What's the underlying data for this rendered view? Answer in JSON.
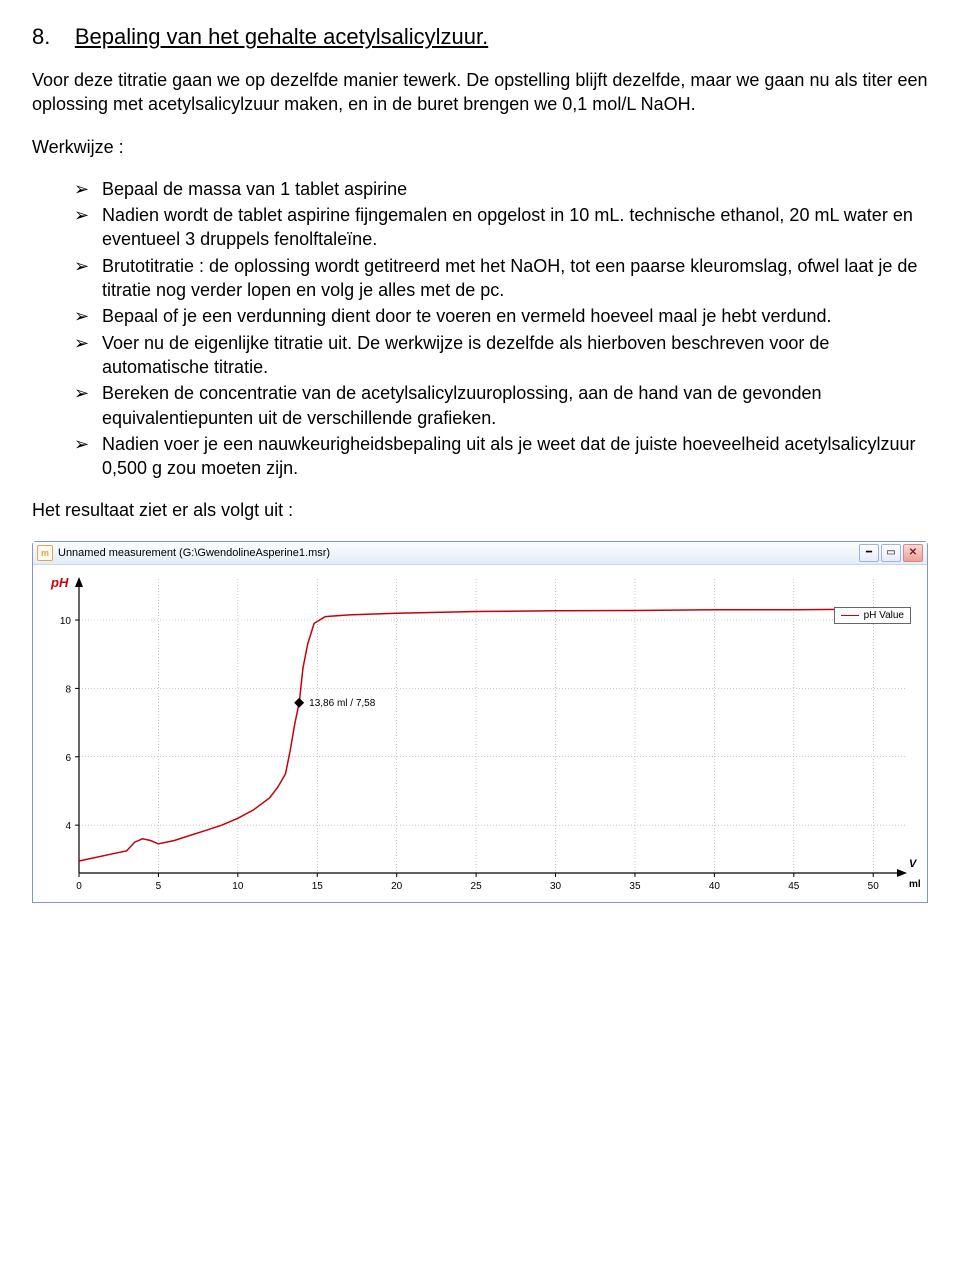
{
  "section": {
    "number": "8.",
    "title": "Bepaling van het gehalte acetylsalicylzuur."
  },
  "para1": "Voor deze titratie gaan we op dezelfde manier tewerk. De opstelling blijft dezelfde, maar we gaan nu als titer een oplossing met acetylsalicylzuur maken, en in de buret brengen we 0,1 mol/L NaOH.",
  "werkwijze_label": "Werkwijze :",
  "bullets": [
    "Bepaal de massa van 1 tablet aspirine",
    "Nadien wordt de tablet aspirine fijngemalen en opgelost in 10 mL. technische ethanol, 20 mL water en eventueel 3 druppels fenolftaleïne.",
    "Brutotitratie : de oplossing wordt getitreerd met het NaOH, tot een paarse kleuromslag, ofwel laat je de titratie nog verder lopen en volg je alles met de pc.",
    "Bepaal of je een verdunning dient door te voeren en vermeld hoeveel maal je hebt verdund.",
    "Voer nu de eigenlijke titratie uit. De werkwijze is dezelfde als hierboven beschreven voor de automatische titratie.",
    "Bereken de concentratie van de acetylsalicylzuuroplossing, aan de hand van de gevonden equivalentiepunten uit de verschillende grafieken.",
    "Nadien voer je een nauwkeurigheidsbepaling uit als je weet dat de juiste hoeveelheid acetylsalicylzuur 0,500 g zou moeten zijn."
  ],
  "result_label": "Het resultaat ziet er als volgt uit :",
  "chart": {
    "window_icon_letter": "m",
    "window_title": "Unnamed measurement (G:\\GwendolineAsperine1.msr)",
    "legend_label": "pH Value",
    "y_axis_label": "pH",
    "y_axis_label_color": "#c8000a",
    "x_axis_label": "V",
    "x_axis_unit": "ml",
    "marker_label": "13,86 ml / 7,58",
    "marker_x": 13.86,
    "marker_y": 7.58,
    "xlim": [
      0,
      52
    ],
    "ylim": [
      2.6,
      11.2
    ],
    "xticks": [
      0,
      5,
      10,
      15,
      20,
      25,
      30,
      35,
      40,
      45,
      50
    ],
    "yticks": [
      4,
      6,
      8,
      10
    ],
    "grid_color": "#969696",
    "axis_color": "#000000",
    "line_color": "#c8000a",
    "line_width": 1.5,
    "background_color": "#ffffff",
    "tick_fontsize": 10,
    "label_fontsize": 11,
    "curve": [
      [
        0,
        2.95
      ],
      [
        1,
        3.05
      ],
      [
        2,
        3.15
      ],
      [
        3,
        3.25
      ],
      [
        3.5,
        3.5
      ],
      [
        4,
        3.6
      ],
      [
        4.5,
        3.55
      ],
      [
        5,
        3.45
      ],
      [
        6,
        3.55
      ],
      [
        7,
        3.7
      ],
      [
        8,
        3.85
      ],
      [
        9,
        4.0
      ],
      [
        10,
        4.2
      ],
      [
        11,
        4.45
      ],
      [
        12,
        4.8
      ],
      [
        12.5,
        5.1
      ],
      [
        13,
        5.5
      ],
      [
        13.3,
        6.2
      ],
      [
        13.6,
        7.0
      ],
      [
        13.86,
        7.58
      ],
      [
        14.1,
        8.6
      ],
      [
        14.4,
        9.3
      ],
      [
        14.8,
        9.9
      ],
      [
        15.5,
        10.1
      ],
      [
        17,
        10.15
      ],
      [
        20,
        10.2
      ],
      [
        25,
        10.25
      ],
      [
        30,
        10.27
      ],
      [
        35,
        10.28
      ],
      [
        40,
        10.3
      ],
      [
        45,
        10.3
      ],
      [
        50,
        10.32
      ],
      [
        52,
        10.32
      ]
    ]
  }
}
